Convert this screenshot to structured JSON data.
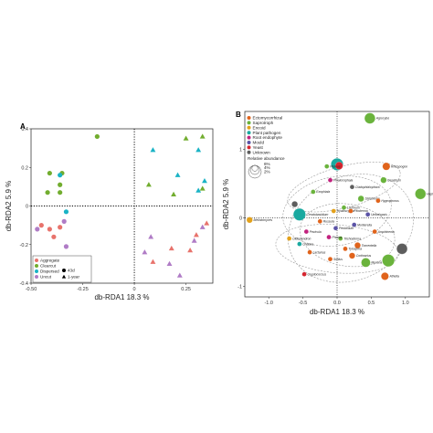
{
  "colors": {
    "Aggregate": "#e8736c",
    "Clearcut": "#72ad2f",
    "Dispersed": "#1ab3c5",
    "Uncut": "#b07cc6",
    "Ectomycorrhizal": "#e0631b",
    "Saprotroph": "#6ab33c",
    "Encoid": "#e3a11a",
    "Plant pathogen": "#1aa9a0",
    "Root endophyte": "#c2227e",
    "Mould": "#5b53a6",
    "Yeast": "#d5252f",
    "Unknown": "#5d5d5d"
  },
  "chart_data": [
    {
      "panel": "A",
      "type": "scatter",
      "xlabel": "db-RDA1 18.3 %",
      "ylabel": "db-RDA2 5.9 %",
      "xlim": [
        -0.5,
        0.38
      ],
      "ylim": [
        -0.4,
        0.4
      ],
      "xticks": [
        "-0.50",
        "-0.25",
        "0",
        "0.25"
      ],
      "xtick_values": [
        -0.5,
        -0.25,
        0,
        0.25
      ],
      "yticks": [
        "-0.4",
        "-0.2",
        "0",
        "0.2",
        "0.4"
      ],
      "ytick_values": [
        -0.4,
        -0.2,
        0,
        0.2,
        0.4
      ],
      "reference_lines": {
        "x": 0,
        "y": 0,
        "style": "dotted"
      },
      "legend": {
        "position": "bottom-left",
        "groups": [
          "Aggregate",
          "Clearcut",
          "Dispersed",
          "Uncut"
        ],
        "times": [
          "43d",
          "1-year"
        ]
      },
      "points": [
        {
          "x": -0.18,
          "y": 0.36,
          "group": "Clearcut",
          "time": "43d"
        },
        {
          "x": -0.41,
          "y": 0.17,
          "group": "Clearcut",
          "time": "43d"
        },
        {
          "x": -0.35,
          "y": 0.17,
          "group": "Clearcut",
          "time": "43d"
        },
        {
          "x": -0.36,
          "y": 0.11,
          "group": "Clearcut",
          "time": "43d"
        },
        {
          "x": -0.42,
          "y": 0.07,
          "group": "Clearcut",
          "time": "43d"
        },
        {
          "x": -0.36,
          "y": 0.07,
          "group": "Clearcut",
          "time": "43d"
        },
        {
          "x": -0.36,
          "y": 0.16,
          "group": "Dispersed",
          "time": "43d"
        },
        {
          "x": -0.33,
          "y": -0.03,
          "group": "Dispersed",
          "time": "43d"
        },
        {
          "x": -0.45,
          "y": -0.1,
          "group": "Aggregate",
          "time": "43d"
        },
        {
          "x": -0.41,
          "y": -0.12,
          "group": "Aggregate",
          "time": "43d"
        },
        {
          "x": -0.36,
          "y": -0.11,
          "group": "Aggregate",
          "time": "43d"
        },
        {
          "x": -0.39,
          "y": -0.16,
          "group": "Aggregate",
          "time": "43d"
        },
        {
          "x": -0.47,
          "y": -0.12,
          "group": "Uncut",
          "time": "43d"
        },
        {
          "x": -0.34,
          "y": -0.08,
          "group": "Uncut",
          "time": "43d"
        },
        {
          "x": -0.33,
          "y": -0.21,
          "group": "Uncut",
          "time": "43d"
        },
        {
          "x": 0.25,
          "y": 0.35,
          "group": "Clearcut",
          "time": "1-year"
        },
        {
          "x": 0.33,
          "y": 0.36,
          "group": "Clearcut",
          "time": "1-year"
        },
        {
          "x": 0.07,
          "y": 0.11,
          "group": "Clearcut",
          "time": "1-year"
        },
        {
          "x": 0.19,
          "y": 0.06,
          "group": "Clearcut",
          "time": "1-year"
        },
        {
          "x": 0.33,
          "y": 0.09,
          "group": "Clearcut",
          "time": "1-year"
        },
        {
          "x": 0.09,
          "y": 0.29,
          "group": "Dispersed",
          "time": "1-year"
        },
        {
          "x": 0.31,
          "y": 0.29,
          "group": "Dispersed",
          "time": "1-year"
        },
        {
          "x": 0.21,
          "y": 0.16,
          "group": "Dispersed",
          "time": "1-year"
        },
        {
          "x": 0.34,
          "y": 0.13,
          "group": "Dispersed",
          "time": "1-year"
        },
        {
          "x": 0.31,
          "y": 0.08,
          "group": "Dispersed",
          "time": "1-year"
        },
        {
          "x": 0.35,
          "y": -0.09,
          "group": "Aggregate",
          "time": "1-year"
        },
        {
          "x": 0.3,
          "y": -0.15,
          "group": "Aggregate",
          "time": "1-year"
        },
        {
          "x": 0.18,
          "y": -0.22,
          "group": "Aggregate",
          "time": "1-year"
        },
        {
          "x": 0.27,
          "y": -0.23,
          "group": "Aggregate",
          "time": "1-year"
        },
        {
          "x": 0.09,
          "y": -0.29,
          "group": "Aggregate",
          "time": "1-year"
        },
        {
          "x": 0.33,
          "y": -0.11,
          "group": "Uncut",
          "time": "1-year"
        },
        {
          "x": 0.29,
          "y": -0.18,
          "group": "Uncut",
          "time": "1-year"
        },
        {
          "x": 0.08,
          "y": -0.16,
          "group": "Uncut",
          "time": "1-year"
        },
        {
          "x": 0.05,
          "y": -0.24,
          "group": "Uncut",
          "time": "1-year"
        },
        {
          "x": 0.17,
          "y": -0.3,
          "group": "Uncut",
          "time": "1-year"
        },
        {
          "x": 0.22,
          "y": -0.36,
          "group": "Uncut",
          "time": "1-year"
        }
      ]
    },
    {
      "panel": "B",
      "type": "scatter",
      "xlabel": "db-RDA1 18.3 %",
      "ylabel": "db-RDA2 5.9 %",
      "xlim": [
        -1.35,
        1.35
      ],
      "ylim": [
        -1.15,
        1.55
      ],
      "xticks": [
        "-1.0",
        "-0.5",
        "0.0",
        "0.5",
        "1.0"
      ],
      "xtick_values": [
        -1.0,
        -0.5,
        0.0,
        0.5,
        1.0
      ],
      "yticks": [
        "-1",
        "0",
        "1"
      ],
      "ytick_values": [
        -1,
        0,
        1
      ],
      "reference_lines": {
        "x": 0,
        "y": 0,
        "style": "dotted"
      },
      "legend": {
        "position": "top-left",
        "guilds": [
          "Ectomycorrhizal",
          "Saprotroph",
          "Encoid",
          "Plant pathogen",
          "Root endophyte",
          "Mould",
          "Yeast",
          "Unknown"
        ],
        "size_title": "Relative abundance",
        "size_levels": [
          "6%",
          "4%",
          "2%"
        ]
      },
      "points": [
        {
          "label": "Agrocybe",
          "x": 0.48,
          "y": 1.45,
          "guild": "Saprotroph",
          "abundance": 5
        },
        {
          "label": "Rhizopogon",
          "x": 0.72,
          "y": 0.75,
          "guild": "Ectomycorrhizal",
          "abundance": 3
        },
        {
          "label": "Hyphodontia",
          "x": 1.22,
          "y": 0.35,
          "guild": "Saprotroph",
          "abundance": 5
        },
        {
          "label": "Geastrum",
          "x": 0.68,
          "y": 0.55,
          "guild": "Saprotroph",
          "abundance": 2
        },
        {
          "label": "",
          "x": 0.0,
          "y": 0.78,
          "guild": "Plant pathogen",
          "abundance": 6
        },
        {
          "label": "",
          "x": 0.03,
          "y": 0.76,
          "guild": "Yeast",
          "abundance": 3
        },
        {
          "label": "Mycena",
          "x": 0.42,
          "y": -0.65,
          "guild": "Saprotroph",
          "abundance": 4
        },
        {
          "label": "",
          "x": 0.75,
          "y": -0.62,
          "guild": "Saprotroph",
          "abundance": 6
        },
        {
          "label": "Ceratobasidium",
          "x": -0.55,
          "y": 0.05,
          "guild": "Plant pathogen",
          "abundance": 6
        },
        {
          "label": "",
          "x": -0.62,
          "y": 0.2,
          "guild": "Unknown",
          "abundance": 2
        },
        {
          "label": "",
          "x": 0.95,
          "y": -0.45,
          "guild": "Unknown",
          "abundance": 5
        },
        {
          "label": "Athelia",
          "x": 0.7,
          "y": -0.85,
          "guild": "Ectomycorrhizal",
          "abundance": 3
        },
        {
          "label": "Tomentella",
          "x": 0.3,
          "y": -0.4,
          "guild": "Ectomycorrhizal",
          "abundance": 2
        },
        {
          "label": "Sistotrema",
          "x": 0.35,
          "y": 0.28,
          "guild": "Saprotroph",
          "abundance": 2
        },
        {
          "label": "Cortinarius",
          "x": 0.22,
          "y": -0.55,
          "guild": "Ectomycorrhizal",
          "abundance": 2
        },
        {
          "label": "Meliniomyces",
          "x": -1.28,
          "y": -0.03,
          "guild": "Encoid",
          "abundance": 2
        },
        {
          "label": "Cryptococcus",
          "x": -0.48,
          "y": -0.82,
          "guild": "Yeast",
          "abundance": 1
        },
        {
          "label": "Phialocephala",
          "x": -0.1,
          "y": 0.55,
          "guild": "Root endophyte",
          "abundance": 1
        },
        {
          "label": "Pluteus",
          "x": -0.15,
          "y": 0.75,
          "guild": "Saprotroph",
          "abundance": 1
        },
        {
          "label": "Oidiodendron",
          "x": -0.7,
          "y": -0.3,
          "guild": "Encoid",
          "abundance": 1
        },
        {
          "label": "Pezicula",
          "x": -0.45,
          "y": -0.2,
          "guild": "Root endophyte",
          "abundance": 1
        },
        {
          "label": "Lachnum",
          "x": 0.1,
          "y": 0.15,
          "guild": "Saprotroph",
          "abundance": 1
        },
        {
          "label": "Hyaloscypha",
          "x": -0.05,
          "y": 0.1,
          "guild": "Encoid",
          "abundance": 1
        },
        {
          "label": "Exophiala",
          "x": -0.35,
          "y": 0.38,
          "guild": "Saprotroph",
          "abundance": 1
        },
        {
          "label": "Trichoderma",
          "x": 0.05,
          "y": -0.3,
          "guild": "Saprotroph",
          "abundance": 1
        },
        {
          "label": "Penicillium",
          "x": -0.02,
          "y": -0.15,
          "guild": "Mould",
          "abundance": 1
        },
        {
          "label": "Mortierella",
          "x": 0.25,
          "y": -0.1,
          "guild": "Mould",
          "abundance": 1
        },
        {
          "label": "Umbelopsis",
          "x": 0.45,
          "y": 0.05,
          "guild": "Mould",
          "abundance": 1
        },
        {
          "label": "Cladophialophora",
          "x": 0.22,
          "y": 0.45,
          "guild": "Unknown",
          "abundance": 1
        },
        {
          "label": "Tylospora",
          "x": 0.12,
          "y": -0.45,
          "guild": "Ectomycorrhizal",
          "abundance": 1
        },
        {
          "label": "Amphinema",
          "x": 0.55,
          "y": -0.2,
          "guild": "Ectomycorrhizal",
          "abundance": 1
        },
        {
          "label": "Piloderma",
          "x": 0.2,
          "y": 0.1,
          "guild": "Ectomycorrhizal",
          "abundance": 1
        },
        {
          "label": "Russula",
          "x": -0.25,
          "y": -0.05,
          "guild": "Ectomycorrhizal",
          "abundance": 1
        },
        {
          "label": "Hygrophorus",
          "x": 0.6,
          "y": 0.25,
          "guild": "Ectomycorrhizal",
          "abundance": 1
        },
        {
          "label": "Lactarius",
          "x": -0.4,
          "y": -0.5,
          "guild": "Ectomycorrhizal",
          "abundance": 1
        },
        {
          "label": "Suillus",
          "x": -0.1,
          "y": -0.6,
          "guild": "Ectomycorrhizal",
          "abundance": 1
        },
        {
          "label": "Chalara",
          "x": -0.55,
          "y": -0.38,
          "guild": "Plant pathogen",
          "abundance": 1
        },
        {
          "label": "Phoma",
          "x": -0.12,
          "y": -0.28,
          "guild": "Root endophyte",
          "abundance": 1
        }
      ],
      "ellipses": [
        {
          "cx": 0.1,
          "cy": 0.45,
          "rx": 0.85,
          "ry": 0.3,
          "angle": -15
        },
        {
          "cx": 0.0,
          "cy": 0.1,
          "rx": 0.8,
          "ry": 0.5,
          "angle": -10
        },
        {
          "cx": 0.15,
          "cy": -0.25,
          "rx": 0.7,
          "ry": 0.45,
          "angle": 10
        },
        {
          "cx": 0.0,
          "cy": -0.45,
          "rx": 0.9,
          "ry": 0.35,
          "angle": 5
        },
        {
          "cx": 0.2,
          "cy": -0.15,
          "rx": 0.95,
          "ry": 0.75,
          "angle": -25
        }
      ]
    }
  ]
}
